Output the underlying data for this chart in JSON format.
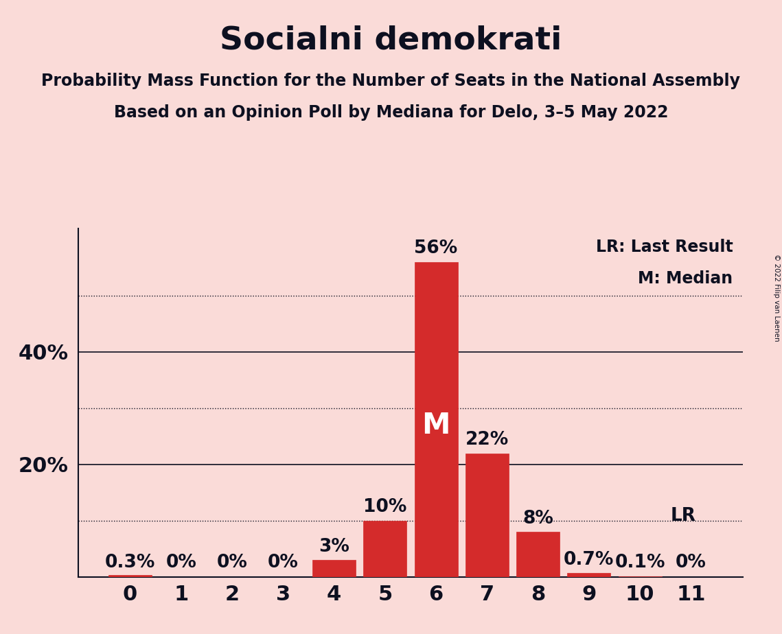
{
  "title": "Socialni demokrati",
  "subtitle1": "Probability Mass Function for the Number of Seats in the National Assembly",
  "subtitle2": "Based on an Opinion Poll by Mediana for Delo, 3–5 May 2022",
  "copyright": "© 2022 Filip van Laenen",
  "categories": [
    0,
    1,
    2,
    3,
    4,
    5,
    6,
    7,
    8,
    9,
    10,
    11
  ],
  "values": [
    0.3,
    0.0,
    0.0,
    0.0,
    3.0,
    10.0,
    56.0,
    22.0,
    8.0,
    0.7,
    0.1,
    0.0
  ],
  "bar_color": "#D42B2B",
  "background_color": "#FADBD8",
  "text_color": "#0D1020",
  "median_bar": 6,
  "lr_bar": 10,
  "ylim": [
    0,
    62
  ],
  "ytick_labels_show": [
    20,
    40
  ],
  "ytick_solid": [
    20,
    40
  ],
  "ytick_dotted": [
    10,
    30,
    50
  ],
  "legend_lr": "LR: Last Result",
  "legend_m": "M: Median",
  "title_fontsize": 34,
  "subtitle_fontsize": 17,
  "label_fontsize": 17,
  "tick_fontsize": 22,
  "bar_label_fontsize": 19
}
